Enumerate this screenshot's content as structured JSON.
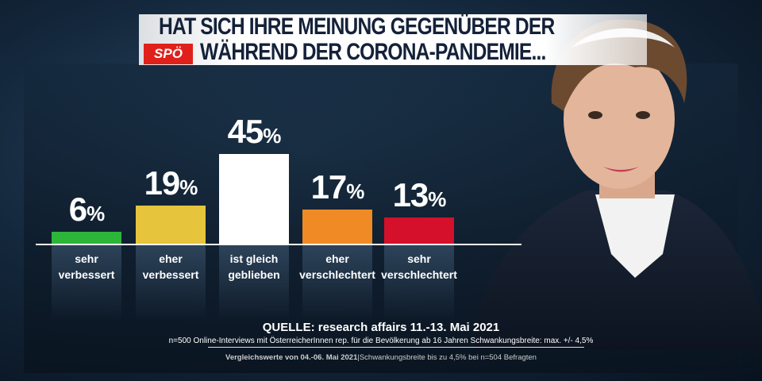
{
  "title": {
    "line1": "HAT SICH IHRE MEINUNG GEGENÜBER DER",
    "line2": "WÄHREND DER CORONA-PANDEMIE...",
    "party_logo": "SPÖ"
  },
  "chart_data": {
    "type": "bar",
    "categories": [
      "sehr verbessert",
      "eher verbessert",
      "ist gleich geblieben",
      "eher verschlechtert",
      "sehr verschlechtert"
    ],
    "values": [
      6,
      19,
      45,
      17,
      13
    ],
    "value_labels": [
      "6",
      "19",
      "45",
      "17",
      "13"
    ],
    "unit": "%",
    "colors": [
      "#2db53a",
      "#e6c43b",
      "#ffffff",
      "#f08a24",
      "#d4102a"
    ],
    "ylim": [
      0,
      45
    ],
    "grid": false
  },
  "labels": [
    [
      "sehr",
      "verbessert"
    ],
    [
      "eher",
      "verbessert"
    ],
    [
      "ist gleich",
      "geblieben"
    ],
    [
      "eher",
      "verschlechtert"
    ],
    [
      "sehr",
      "verschlechtert"
    ]
  ],
  "source": {
    "main": "QUELLE: research affairs 11.-13. Mai 2021",
    "detail": "n=500 Online-Interviews mit ÖsterreicherInnen rep. für die Bevölkerung ab 16 Jahren  Schwankungsbreite: max. +/- 4,5%",
    "compare_bold": "Vergleichswerte von  04.-06. Mai 2021",
    "compare_rest": "|Schwankungsbreite bis zu 4,5% bei n=504 Befragten"
  }
}
